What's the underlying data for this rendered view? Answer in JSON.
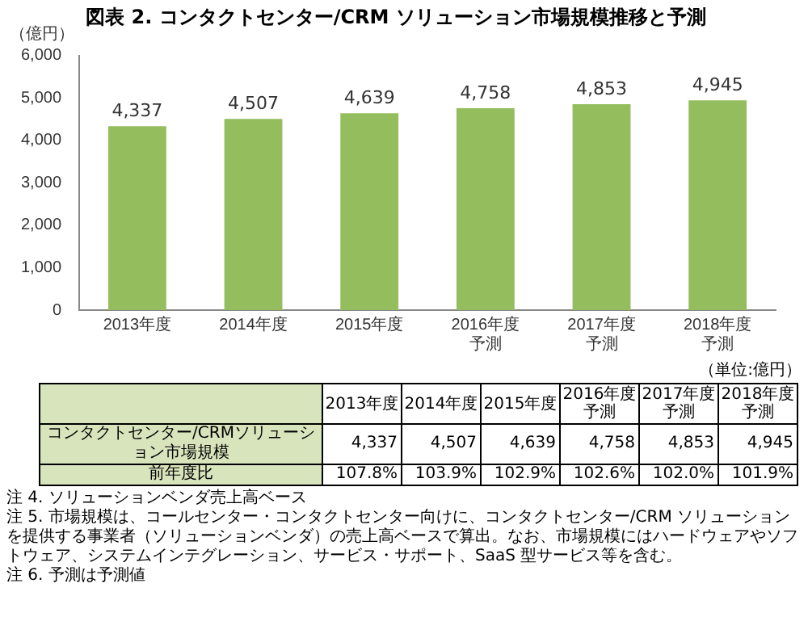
{
  "chart_data": {
    "type": "bar",
    "title": "図表 2. コンタクトセンター/CRM ソリューション市場規模推移と予測",
    "ylabel": "（億円）",
    "categories": [
      "2013年度",
      "2014年度",
      "2015年度",
      "2016年度予測",
      "2017年度予測",
      "2018年度予測"
    ],
    "values": [
      4337,
      4507,
      4639,
      4758,
      4853,
      4945
    ],
    "value_labels": [
      "4,337",
      "4,507",
      "4,639",
      "4,758",
      "4,853",
      "4,945"
    ],
    "color": "#94bd5e",
    "ylim": [
      0,
      6000
    ],
    "yticks": [
      0,
      {
        "value": 1000,
        "label": "1,000"
      },
      {
        "value": 2000,
        "label": "2,000"
      },
      {
        "value": 3000,
        "label": "3,000"
      },
      {
        "value": 4000,
        "label": "4,000"
      },
      {
        "value": 5000,
        "label": "5,000"
      },
      {
        "value": 6000,
        "label": "6,000"
      }
    ],
    "grid": false,
    "legend": false,
    "annotations": [
      "（単位:億円）",
      "コンタクトセンター/CRMソリューション市場規模",
      "前年度比",
      "107.8%",
      "103.9%",
      "102.9%",
      "102.6%",
      "102.0%",
      "101.9%",
      "注 4. ソリューションベンダ売上高ベース",
      "注 5. 市場規模は、コールセンター・コンタクトセンター向けに、コンタクトセンター/CRM ソリューションを提供する事業者（ソリューションベンダ）の売上高ベースで算出。なお、市場規模にはハードウェアやソフトウェア、システムインテグレーション、サービス・サポート、SaaS 型サービス等を含む。",
      "注 6. 予測は予測値"
    ]
  }
}
